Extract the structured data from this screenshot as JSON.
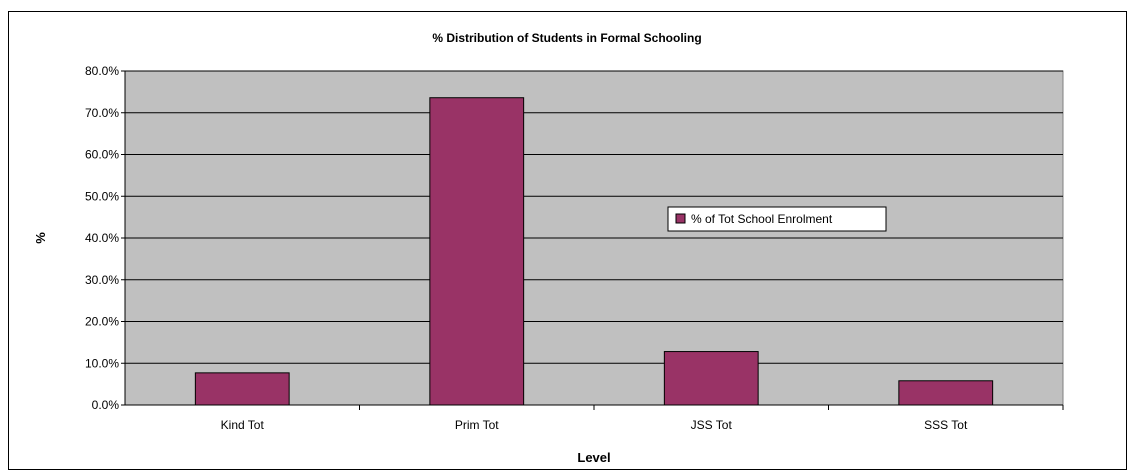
{
  "chart_data": {
    "type": "bar",
    "title": "% Distribution of Students in Formal Schooling",
    "xlabel": "Level",
    "ylabel": "%",
    "categories": [
      "Kind Tot",
      "Prim Tot",
      "JSS Tot",
      "SSS Tot"
    ],
    "series": [
      {
        "name": "% of Tot School Enrolment",
        "values": [
          7.7,
          73.6,
          12.8,
          5.8
        ]
      }
    ],
    "ylim": [
      0,
      80
    ],
    "yticks": [
      "0.0%",
      "10.0%",
      "20.0%",
      "30.0%",
      "40.0%",
      "50.0%",
      "60.0%",
      "70.0%",
      "80.0%"
    ],
    "grid": true,
    "legend": "center-right",
    "colors": {
      "bar": "#993366",
      "plot_bg": "#c0c0c0",
      "grid": "#000000"
    }
  }
}
